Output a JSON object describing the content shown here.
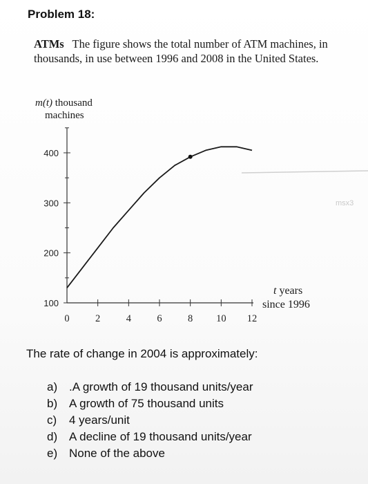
{
  "problem": {
    "title": "Problem 18:"
  },
  "intro": {
    "lead": "ATMs",
    "text": "The figure shows the total number of ATM machines, in thousands, in use between 1996 and 2008 in the United States."
  },
  "chart_data": {
    "type": "line",
    "ylabel_var": "m(t)",
    "ylabel_rest": " thousand",
    "ylabel_line2": "machines",
    "xlabel_var": "t",
    "xlabel_rest": " years",
    "xlabel_line2": "since 1996",
    "xlim": [
      0,
      12
    ],
    "ylim": [
      100,
      400
    ],
    "x_ticks": [
      0,
      2,
      4,
      6,
      8,
      10,
      12
    ],
    "y_ticks": [
      100,
      200,
      300,
      400
    ],
    "series": [
      {
        "x": [
          0,
          1,
          2,
          3,
          4,
          5,
          6,
          7,
          8,
          9,
          10,
          11,
          12
        ],
        "y": [
          130,
          170,
          210,
          250,
          285,
          320,
          350,
          375,
          392,
          405,
          412,
          412,
          405
        ]
      }
    ],
    "highlighted_point": {
      "x": 8,
      "y": 392
    },
    "line_color": "#1a1a1a",
    "axis_color": "#333333"
  },
  "watermark": "msx3",
  "question": "The rate of change in 2004 is approximately:",
  "options": [
    {
      "letter": "a)",
      "text": ".A growth of 19 thousand units/year"
    },
    {
      "letter": "b)",
      "text": "A growth of 75 thousand units"
    },
    {
      "letter": "c)",
      "text": "4 years/unit"
    },
    {
      "letter": "d)",
      "text": "A decline of 19 thousand units/year"
    },
    {
      "letter": "e)",
      "text": "None of the above"
    }
  ]
}
